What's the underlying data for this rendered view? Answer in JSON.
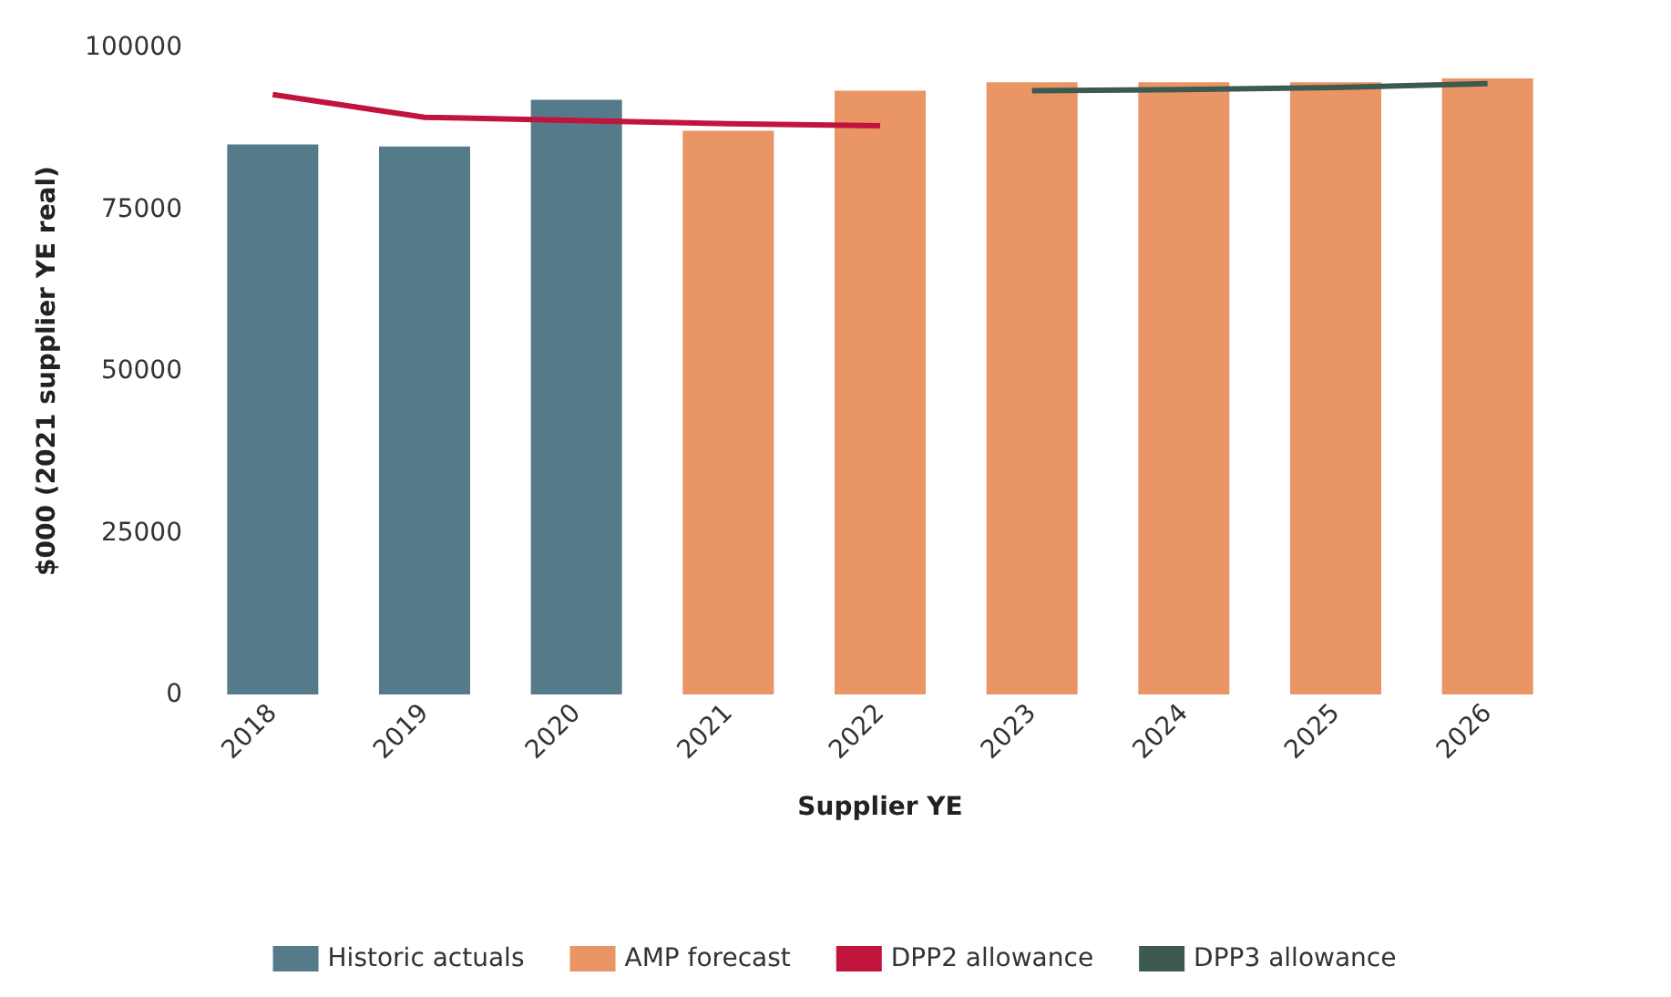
{
  "chart_data": {
    "type": "bar",
    "xlabel": "Supplier YE",
    "ylabel": "$000 (2021 supplier YE real)",
    "categories": [
      "2018",
      "2019",
      "2020",
      "2021",
      "2022",
      "2023",
      "2024",
      "2025",
      "2026"
    ],
    "ylim": [
      0,
      100000
    ],
    "yticks": [
      0,
      25000,
      50000,
      75000,
      100000
    ],
    "grid": false,
    "legend": "bottom",
    "series": [
      {
        "name": "Historic actuals",
        "color": "#557a89",
        "values": [
          85000,
          84700,
          91900,
          null,
          null,
          null,
          null,
          null,
          null
        ]
      },
      {
        "name": "AMP forecast",
        "color": "#e99566",
        "values": [
          null,
          null,
          null,
          87100,
          93300,
          94600,
          94600,
          94600,
          95200
        ]
      },
      {
        "name": "DPP2 allowance",
        "type": "line",
        "color": "#c0143c",
        "values": [
          92700,
          89200,
          88700,
          88200,
          87900,
          null,
          null,
          null,
          null
        ]
      },
      {
        "name": "DPP3 allowance",
        "type": "line",
        "color": "#3d5a52",
        "values": [
          null,
          null,
          null,
          null,
          null,
          93300,
          93500,
          93800,
          94400
        ]
      }
    ]
  }
}
